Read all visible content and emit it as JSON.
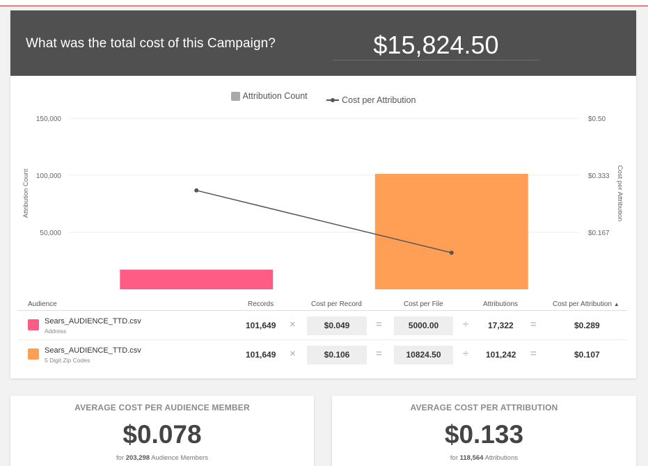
{
  "header": {
    "question": "What was the total cost of this Campaign?",
    "total_cost": "$15,824.50"
  },
  "legend": {
    "bar_label": "Attribution Count",
    "line_label": "Cost per Attribution"
  },
  "chart_data": {
    "type": "bar",
    "categories": [
      "Sears_AUDIENCE_TTD.csv (Address)",
      "Sears_AUDIENCE_TTD.csv (5 Digit Zip Codes)"
    ],
    "series": [
      {
        "name": "Attribution Count",
        "type": "bar",
        "axis": "left",
        "values": [
          17322,
          101242
        ],
        "colors": [
          "#ff5c85",
          "#ff9f55"
        ]
      },
      {
        "name": "Cost per Attribution",
        "type": "line",
        "axis": "right",
        "values": [
          0.289,
          0.107
        ],
        "color": "#555555"
      }
    ],
    "ylabel_left": "Attribution Count",
    "ylabel_right": "Cost per Attribution",
    "ylim_left": [
      0,
      150000
    ],
    "ylim_right": [
      0,
      0.5
    ],
    "left_ticks": [
      "150,000",
      "100,000",
      "50,000"
    ],
    "right_ticks": [
      "$0.50",
      "$0.333",
      "$0.167"
    ],
    "grid": true
  },
  "table": {
    "headers": {
      "audience": "Audience",
      "records": "Records",
      "cost_per_record": "Cost per Record",
      "cost_per_file": "Cost per File",
      "attributions": "Attributions",
      "cost_per_attribution": "Cost per Attribution"
    },
    "sort_indicator": "▲",
    "operators": {
      "times": "×",
      "equals": "=",
      "divide": "÷"
    },
    "rows": [
      {
        "name": "Sears_AUDIENCE_TTD.csv",
        "sub": "Address",
        "color": "#ff5c85",
        "records": "101,649",
        "cost_per_record": "$0.049",
        "cost_per_file": "5000.00",
        "attributions": "17,322",
        "cost_per_attribution": "$0.289"
      },
      {
        "name": "Sears_AUDIENCE_TTD.csv",
        "sub": "5 Digit Zip Codes",
        "color": "#ff9f55",
        "records": "101,649",
        "cost_per_record": "$0.106",
        "cost_per_file": "10824.50",
        "attributions": "101,242",
        "cost_per_attribution": "$0.107"
      }
    ]
  },
  "stats": [
    {
      "label": "AVERAGE COST PER AUDIENCE MEMBER",
      "value": "$0.078",
      "prefix": "for",
      "count": "203,298",
      "suffix": "Audience Members"
    },
    {
      "label": "AVERAGE COST PER ATTRIBUTION",
      "value": "$0.133",
      "prefix": "for",
      "count": "118,564",
      "suffix": "Attributions"
    }
  ]
}
